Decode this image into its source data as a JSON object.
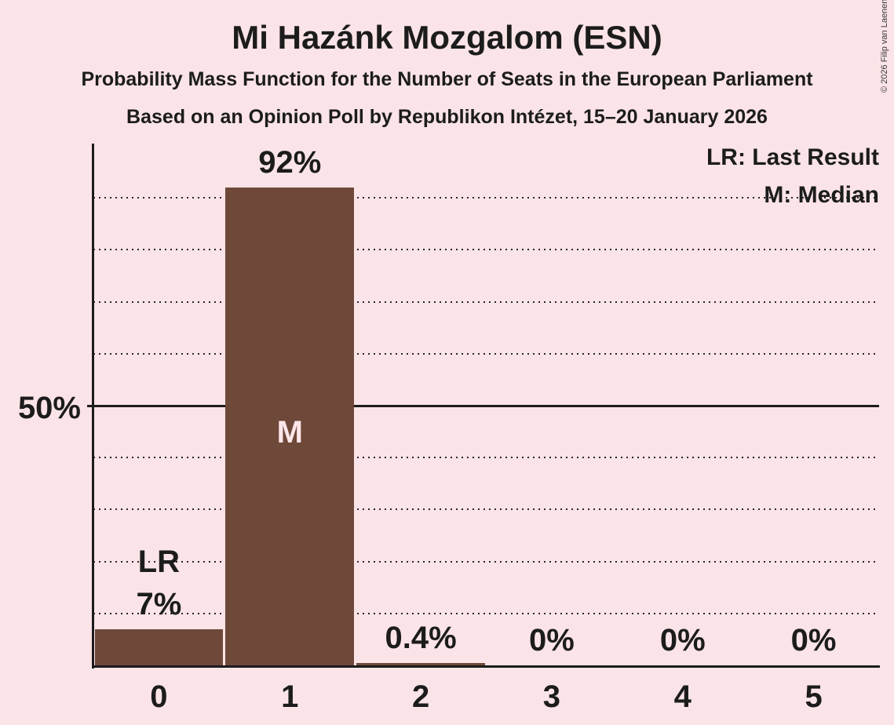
{
  "header": {
    "title": "Mi Hazánk Mozgalom (ESN)",
    "subtitle1": "Probability Mass Function for the Number of Seats in the European Parliament",
    "subtitle2": "Based on an Opinion Poll by Republikon Intézet, 15–20 January 2026",
    "copyright": "© 2026 Filip van Laenen"
  },
  "legend": {
    "lr": "LR: Last Result",
    "m": "M: Median"
  },
  "markers": {
    "last_result": "LR",
    "median": "M"
  },
  "y_axis": {
    "tick_label_50": "50%"
  },
  "colors": {
    "background": "#FBE4E7",
    "bar": "#6E4839",
    "text": "#1C1C1C",
    "bar_inner_label": "#FCE7E9"
  },
  "chart_data": {
    "type": "bar",
    "title": "Mi Hazánk Mozgalom (ESN)",
    "subtitle": "Probability Mass Function for the Number of Seats in the European Parliament",
    "source_note": "Based on an Opinion Poll by Republikon Intézet, 15–20 January 2026",
    "categories": [
      "0",
      "1",
      "2",
      "3",
      "4",
      "5"
    ],
    "values": [
      7,
      92,
      0.4,
      0,
      0,
      0
    ],
    "value_labels": [
      "7%",
      "92%",
      "0.4%",
      "0%",
      "0%",
      "0%"
    ],
    "ylim": [
      0,
      100
    ],
    "gridlines_pct": [
      10,
      20,
      30,
      40,
      50,
      60,
      70,
      80,
      90
    ],
    "solid_gridline_pct": 50,
    "y_tick_labels": {
      "50": "50%"
    },
    "legend": [
      "LR: Last Result",
      "M: Median"
    ],
    "legend_position": "top-right",
    "annotations": {
      "last_result_seats": "0",
      "median_seats": "1"
    }
  }
}
